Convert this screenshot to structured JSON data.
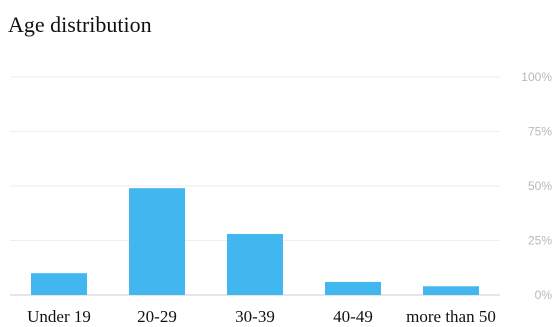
{
  "chart_data": {
    "type": "bar",
    "title": "Age distribution",
    "xlabel": "",
    "ylabel": "",
    "categories": [
      "Under 19",
      "20-29",
      "30-39",
      "40-49",
      "more than 50"
    ],
    "values": [
      10,
      49,
      28,
      6,
      4
    ],
    "ylim": [
      0,
      100
    ],
    "yticks": [
      0,
      25,
      50,
      75,
      100
    ],
    "ytick_labels": [
      "0%",
      "25%",
      "50%",
      "75%",
      "100%"
    ],
    "grid": true,
    "legend": "none",
    "colors": {
      "bar": "#42b6ee",
      "grid": "#eeeeee",
      "axis": "#cccccc"
    }
  }
}
